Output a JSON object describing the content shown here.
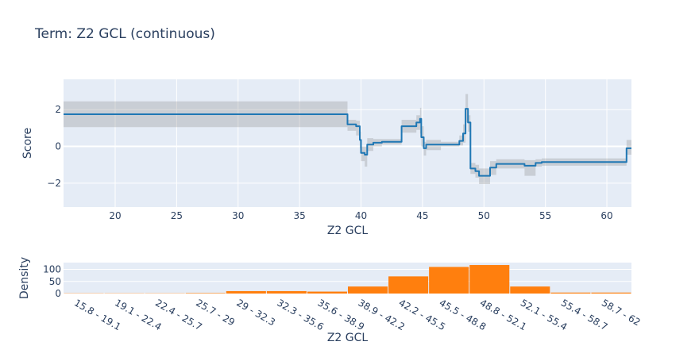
{
  "title": "Term: Z2 GCL (continuous)",
  "chart_data": [
    {
      "type": "line",
      "xlabel": "Z2 GCL",
      "ylabel": "Score",
      "xlim": [
        15.8,
        62
      ],
      "ylim": [
        -3.3,
        3.65
      ],
      "x_ticks": [
        20,
        25,
        30,
        35,
        40,
        45,
        50,
        55,
        60
      ],
      "y_ticks": [
        2,
        0,
        -2
      ],
      "y_tick_labels": [
        "2",
        "0",
        "−2"
      ],
      "grid": true,
      "colors": {
        "line": "#1f77b4",
        "band": "rgba(128,128,128,0.28)",
        "plot_bg": "#e5ecf6"
      },
      "series": [
        {
          "points": [
            {
              "x": 15.8,
              "y": 1.75,
              "lo": 1.05,
              "hi": 2.45
            },
            {
              "x": 38.9,
              "y": 1.2,
              "lo": 0.85,
              "hi": 1.45
            },
            {
              "x": 39.6,
              "y": 1.1,
              "lo": 0.6,
              "hi": 1.4
            },
            {
              "x": 39.9,
              "y": 0.35,
              "lo": -0.1,
              "hi": 0.8
            },
            {
              "x": 40.0,
              "y": -0.35,
              "lo": -0.8,
              "hi": 0.0
            },
            {
              "x": 40.3,
              "y": -0.45,
              "lo": -1.1,
              "hi": 0.0
            },
            {
              "x": 40.5,
              "y": 0.1,
              "lo": -0.25,
              "hi": 0.45
            },
            {
              "x": 41.0,
              "y": 0.2,
              "lo": 0.0,
              "hi": 0.4
            },
            {
              "x": 41.7,
              "y": 0.25,
              "lo": 0.1,
              "hi": 0.4
            },
            {
              "x": 43.3,
              "y": 1.1,
              "lo": 0.75,
              "hi": 1.45
            },
            {
              "x": 44.5,
              "y": 1.3,
              "lo": 0.9,
              "hi": 1.7
            },
            {
              "x": 44.8,
              "y": 1.5,
              "lo": 0.7,
              "hi": 2.1
            },
            {
              "x": 44.9,
              "y": 0.5,
              "lo": 0.0,
              "hi": 1.1
            },
            {
              "x": 45.1,
              "y": -0.1,
              "lo": -0.5,
              "hi": 0.25
            },
            {
              "x": 45.3,
              "y": 0.1,
              "lo": -0.2,
              "hi": 0.35
            },
            {
              "x": 46.5,
              "y": 0.1,
              "lo": 0.0,
              "hi": 0.25
            },
            {
              "x": 48.0,
              "y": 0.3,
              "lo": 0.05,
              "hi": 0.6
            },
            {
              "x": 48.3,
              "y": 0.7,
              "lo": 0.2,
              "hi": 1.2
            },
            {
              "x": 48.5,
              "y": 2.05,
              "lo": 1.3,
              "hi": 2.85
            },
            {
              "x": 48.7,
              "y": 1.3,
              "lo": 0.8,
              "hi": 1.7
            },
            {
              "x": 48.9,
              "y": -1.2,
              "lo": -1.5,
              "hi": -0.9
            },
            {
              "x": 49.3,
              "y": -1.35,
              "lo": -1.7,
              "hi": -1.0
            },
            {
              "x": 49.6,
              "y": -1.6,
              "lo": -2.05,
              "hi": -1.2
            },
            {
              "x": 50.5,
              "y": -1.15,
              "lo": -1.55,
              "hi": -0.8
            },
            {
              "x": 51.0,
              "y": -0.95,
              "lo": -1.2,
              "hi": -0.7
            },
            {
              "x": 53.3,
              "y": -1.05,
              "lo": -1.6,
              "hi": -0.75
            },
            {
              "x": 54.2,
              "y": -0.9,
              "lo": -1.1,
              "hi": -0.7
            },
            {
              "x": 54.7,
              "y": -0.85,
              "lo": -1.05,
              "hi": -0.65
            },
            {
              "x": 61.6,
              "y": -0.1,
              "lo": -0.45,
              "hi": 0.35
            },
            {
              "x": 62.0,
              "y": -0.1,
              "lo": -0.45,
              "hi": 0.35
            }
          ]
        }
      ]
    },
    {
      "type": "bar",
      "xlabel": "Z2 GCL",
      "ylabel": "Density",
      "ylim": [
        0,
        128
      ],
      "y_ticks": [
        100,
        50,
        0
      ],
      "y_tick_labels": [
        "100",
        "50",
        "0"
      ],
      "colors": {
        "bar": "#ff7f0e",
        "plot_bg": "#e5ecf6"
      },
      "categories": [
        "15.8 - 19.1",
        "19.1 - 22.4",
        "22.4 - 25.7",
        "25.7 - 29",
        "29 - 32.3",
        "32.3 - 35.6",
        "35.6 - 38.9",
        "38.9 - 42.2",
        "42.2 - 45.5",
        "45.5 - 48.8",
        "48.8 - 52.1",
        "52.1 - 55.4",
        "55.4 - 58.7",
        "58.7 - 62"
      ],
      "values": [
        1,
        1,
        1,
        2,
        10,
        10,
        8,
        29,
        71,
        110,
        118,
        29,
        4,
        4
      ]
    }
  ]
}
